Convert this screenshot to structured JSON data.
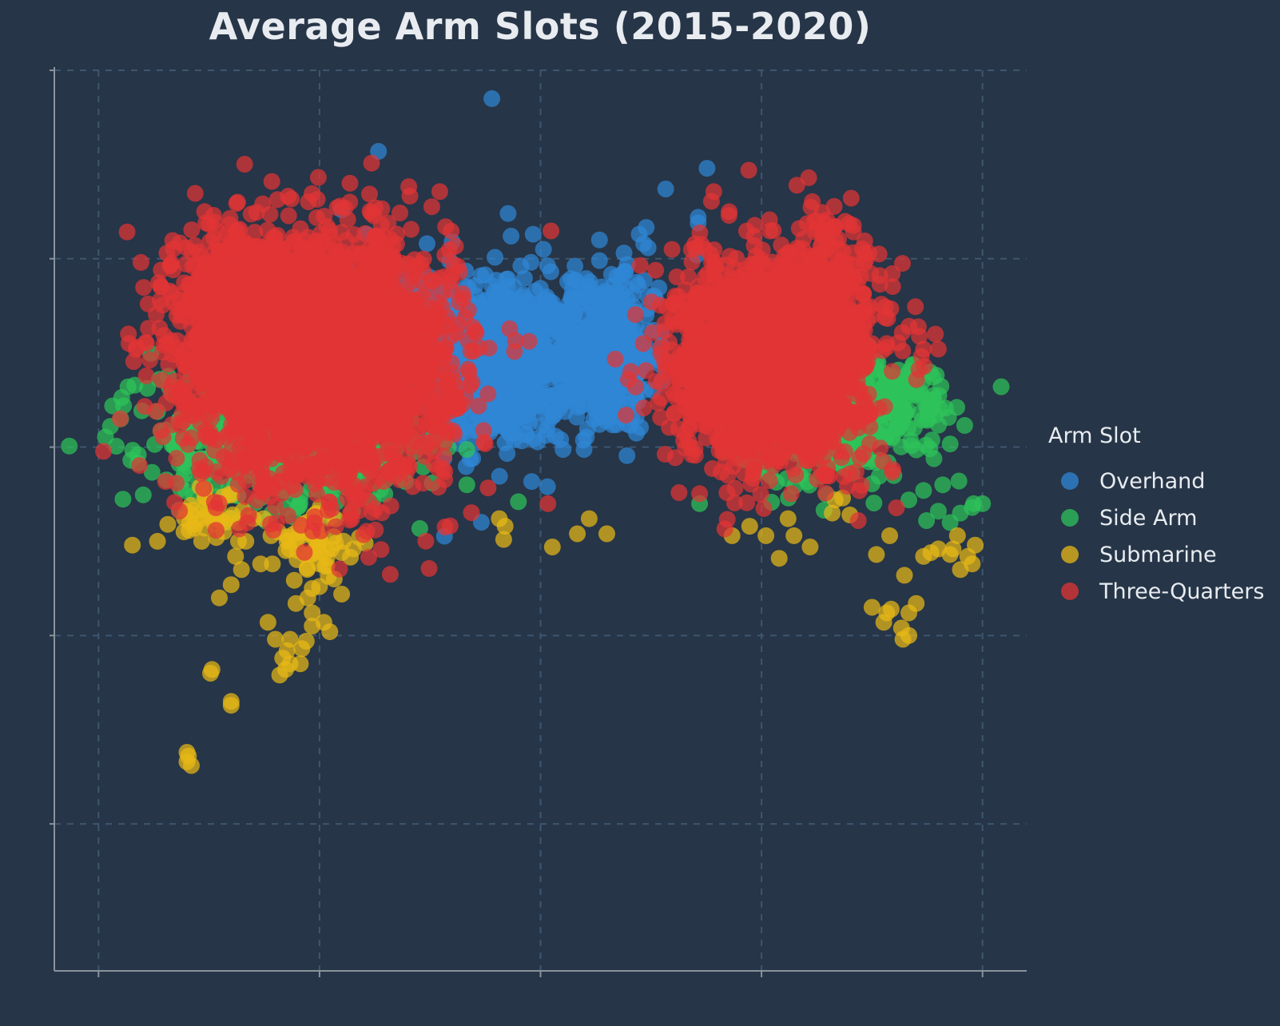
{
  "chart_data": {
    "type": "scatter",
    "title": "Average Arm Slots (2015-2020)",
    "xlabel": "",
    "ylabel": "",
    "x_ticks": [
      -3,
      -1.5,
      0,
      1.5,
      3
    ],
    "y_ticks": [
      2,
      3,
      4,
      5,
      6
    ],
    "xlim": [
      -3.3,
      3.3
    ],
    "ylim": [
      1.22,
      6.0
    ],
    "grid": true,
    "legend": {
      "title": "Arm Slot",
      "position": "right"
    },
    "series": [
      {
        "name": "Overhand",
        "color": "#2f86d6",
        "clusters": [
          {
            "cx": -0.28,
            "cy": 4.45,
            "sx": 0.24,
            "sy": 0.22,
            "n": 700
          },
          {
            "cx": 0.42,
            "cy": 4.48,
            "sx": 0.18,
            "sy": 0.2,
            "n": 450
          },
          {
            "cx": -0.9,
            "cy": 4.75,
            "sx": 0.2,
            "sy": 0.12,
            "n": 120
          },
          {
            "cx": 0.6,
            "cy": 4.8,
            "sx": 0.12,
            "sy": 0.1,
            "n": 40
          }
        ],
        "points": [
          [
            -0.33,
            5.85
          ],
          [
            -1.1,
            5.57
          ],
          [
            -1.35,
            5.26
          ],
          [
            -1.18,
            5.13
          ],
          [
            -0.22,
            5.24
          ],
          [
            -0.2,
            5.12
          ],
          [
            -0.05,
            5.13
          ],
          [
            1.13,
            5.48
          ],
          [
            0.85,
            5.37
          ],
          [
            1.07,
            5.22
          ],
          [
            0.67,
            5.13
          ],
          [
            0.7,
            5.08
          ],
          [
            1.06,
            5.02
          ],
          [
            0.4,
            4.99
          ],
          [
            1.07,
            5.19
          ],
          [
            -0.1,
            4.17
          ],
          [
            0.4,
            5.1
          ],
          [
            0.02,
            5.05
          ],
          [
            -0.77,
            5.08
          ],
          [
            -0.6,
            5.09
          ]
        ]
      },
      {
        "name": "Side Arm",
        "color": "#2ec35a",
        "clusters": [
          {
            "cx": -1.65,
            "cy": 4.0,
            "sx": 0.4,
            "sy": 0.15,
            "n": 380
          },
          {
            "cx": -2.3,
            "cy": 4.05,
            "sx": 0.3,
            "sy": 0.18,
            "n": 110
          },
          {
            "cx": 1.9,
            "cy": 4.1,
            "sx": 0.28,
            "sy": 0.15,
            "n": 260
          },
          {
            "cx": 2.35,
            "cy": 4.25,
            "sx": 0.28,
            "sy": 0.12,
            "n": 160
          }
        ],
        "points": [
          [
            -2.8,
            4.32
          ],
          [
            -2.52,
            4.32
          ],
          [
            -2.83,
            4.22
          ],
          [
            -2.85,
            4.15
          ],
          [
            -2.5,
            4.28
          ],
          [
            -2.27,
            4.22
          ],
          [
            -2.15,
            4.28
          ],
          [
            -2.12,
            4.45
          ],
          [
            -0.5,
            3.8
          ],
          [
            -0.15,
            3.71
          ],
          [
            1.08,
            3.7
          ],
          [
            2.6,
            3.77
          ],
          [
            2.7,
            3.66
          ],
          [
            2.85,
            3.65
          ],
          [
            2.93,
            3.68
          ],
          [
            2.94,
            3.7
          ],
          [
            3.0,
            3.7
          ],
          [
            2.5,
            3.72
          ],
          [
            2.62,
            3.61
          ],
          [
            2.78,
            3.6
          ],
          [
            2.84,
            3.82
          ],
          [
            2.73,
            3.8
          ],
          [
            -1.52,
            3.58
          ],
          [
            -1.65,
            3.68
          ],
          [
            -1.68,
            3.63
          ]
        ]
      },
      {
        "name": "Submarine",
        "color": "#e8b816",
        "clusters": [
          {
            "cx": -1.55,
            "cy": 3.5,
            "sx": 0.1,
            "sy": 0.1,
            "n": 45
          },
          {
            "cx": -2.2,
            "cy": 3.68,
            "sx": 0.12,
            "sy": 0.08,
            "n": 25
          }
        ],
        "points": [
          [
            -2.6,
            3.5
          ],
          [
            -2.38,
            3.6
          ],
          [
            -2.42,
            3.55
          ],
          [
            -2.3,
            3.62
          ],
          [
            -2.15,
            3.6
          ],
          [
            -2.05,
            3.6
          ],
          [
            -1.95,
            3.62
          ],
          [
            -2.0,
            3.5
          ],
          [
            -1.88,
            3.62
          ],
          [
            -2.2,
            3.52
          ],
          [
            -1.78,
            3.55
          ],
          [
            -1.83,
            3.53
          ],
          [
            -1.65,
            3.45
          ],
          [
            -1.45,
            3.45
          ],
          [
            -1.42,
            3.46
          ],
          [
            -1.23,
            3.52
          ],
          [
            -1.19,
            3.49
          ],
          [
            -2.03,
            3.35
          ],
          [
            -2.18,
            3.2
          ],
          [
            -2.1,
            3.27
          ],
          [
            -2.3,
            3.5
          ],
          [
            -2.35,
            3.57
          ],
          [
            -1.72,
            3.5
          ],
          [
            -1.6,
            3.43
          ],
          [
            -1.5,
            3.38
          ],
          [
            -1.5,
            3.26
          ],
          [
            -1.4,
            3.3
          ],
          [
            -1.35,
            3.22
          ],
          [
            -1.55,
            3.25
          ],
          [
            -1.58,
            3.2
          ],
          [
            -1.66,
            3.17
          ],
          [
            -1.55,
            3.12
          ],
          [
            -1.47,
            3.07
          ],
          [
            -1.43,
            3.02
          ],
          [
            -1.55,
            3.05
          ],
          [
            -1.59,
            2.97
          ],
          [
            -1.62,
            2.93
          ],
          [
            -1.7,
            2.98
          ],
          [
            -1.72,
            2.92
          ],
          [
            -1.8,
            2.98
          ],
          [
            -1.75,
            2.88
          ],
          [
            -1.7,
            2.85
          ],
          [
            -1.73,
            2.82
          ],
          [
            -1.77,
            2.79
          ],
          [
            -1.63,
            2.85
          ],
          [
            -1.82,
            3.38
          ],
          [
            -1.9,
            3.38
          ],
          [
            -2.05,
            3.5
          ],
          [
            -2.07,
            3.42
          ],
          [
            -1.45,
            3.37
          ],
          [
            -1.35,
            3.44
          ],
          [
            -1.27,
            3.46
          ],
          [
            -2.2,
            3.62
          ],
          [
            -2.28,
            3.57
          ],
          [
            -1.85,
            3.07
          ],
          [
            -2.23,
            2.82
          ],
          [
            -2.24,
            2.8
          ],
          [
            -2.1,
            2.65
          ],
          [
            -2.1,
            2.63
          ],
          [
            -2.4,
            2.38
          ],
          [
            -2.39,
            2.36
          ],
          [
            -2.4,
            2.33
          ],
          [
            -2.37,
            2.31
          ],
          [
            -2.77,
            3.48
          ],
          [
            -2.53,
            3.59
          ],
          [
            -0.28,
            3.62
          ],
          [
            -0.24,
            3.58
          ],
          [
            -0.25,
            3.51
          ],
          [
            0.08,
            3.47
          ],
          [
            0.25,
            3.54
          ],
          [
            0.33,
            3.62
          ],
          [
            0.45,
            3.54
          ],
          [
            1.3,
            3.53
          ],
          [
            1.42,
            3.58
          ],
          [
            1.53,
            3.53
          ],
          [
            1.68,
            3.62
          ],
          [
            1.72,
            3.53
          ],
          [
            1.83,
            3.47
          ],
          [
            1.62,
            3.41
          ],
          [
            2.0,
            3.72
          ],
          [
            1.98,
            3.65
          ],
          [
            2.05,
            3.73
          ],
          [
            2.1,
            3.64
          ],
          [
            2.28,
            3.43
          ],
          [
            2.37,
            3.53
          ],
          [
            2.47,
            3.32
          ],
          [
            2.6,
            3.42
          ],
          [
            2.65,
            3.44
          ],
          [
            2.7,
            3.46
          ],
          [
            2.83,
            3.53
          ],
          [
            2.8,
            3.46
          ],
          [
            2.9,
            3.42
          ],
          [
            2.95,
            3.48
          ],
          [
            2.93,
            3.38
          ],
          [
            2.85,
            3.35
          ],
          [
            2.78,
            3.43
          ],
          [
            2.25,
            3.15
          ],
          [
            2.38,
            3.14
          ],
          [
            2.5,
            3.12
          ],
          [
            2.55,
            3.17
          ],
          [
            2.33,
            3.07
          ],
          [
            2.45,
            3.04
          ],
          [
            2.5,
            3.0
          ],
          [
            2.35,
            3.12
          ],
          [
            2.46,
            2.98
          ]
        ]
      },
      {
        "name": "Three-Quarters",
        "color": "#e23434",
        "clusters": [
          {
            "cx": -1.45,
            "cy": 4.45,
            "sx": 0.42,
            "sy": 0.32,
            "n": 2600
          },
          {
            "cx": -2.05,
            "cy": 4.62,
            "sx": 0.22,
            "sy": 0.3,
            "n": 650
          },
          {
            "cx": 1.55,
            "cy": 4.45,
            "sx": 0.32,
            "sy": 0.27,
            "n": 1800
          },
          {
            "cx": 1.95,
            "cy": 4.62,
            "sx": 0.18,
            "sy": 0.3,
            "n": 350
          }
        ],
        "points": [
          [
            -2.28,
            5.25
          ],
          [
            -2.1,
            5.11
          ],
          [
            -2.05,
            5.11
          ],
          [
            -1.8,
            5.11
          ],
          [
            -2.45,
            4.78
          ],
          [
            -2.38,
            4.79
          ],
          [
            -2.43,
            4.5
          ],
          [
            -2.4,
            4.52
          ],
          [
            1.82,
            5.43
          ],
          [
            1.74,
            5.39
          ],
          [
            1.45,
            5.12
          ],
          [
            1.58,
            5.15
          ],
          [
            1.45,
            5.07
          ],
          [
            2.25,
            4.55
          ],
          [
            2.35,
            4.53
          ],
          [
            2.6,
            4.52
          ],
          [
            2.7,
            4.52
          ],
          [
            2.68,
            4.6
          ],
          [
            0.05,
            3.7
          ],
          [
            -0.65,
            3.87
          ],
          [
            0.58,
            4.17
          ],
          [
            1.65,
            4.99
          ],
          [
            1.43,
            4.97
          ],
          [
            2.05,
            4.82
          ],
          [
            2.07,
            4.84
          ],
          [
            2.1,
            4.73
          ],
          [
            2.13,
            4.71
          ],
          [
            -1.88,
            4.72
          ],
          [
            2.2,
            4.62
          ],
          [
            2.35,
            4.55
          ]
        ]
      }
    ]
  }
}
